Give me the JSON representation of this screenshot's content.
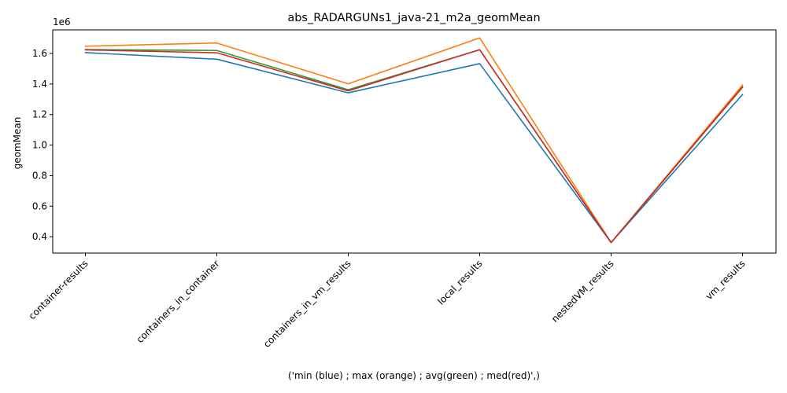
{
  "chart_data": {
    "type": "line",
    "title": "abs_RADARGUNs1_java-21_m2a_geomMean",
    "xlabel": "('min (blue) ; max (orange) ; avg(green) ; med(red)',)",
    "ylabel": "geomMean",
    "y_offset_label": "1e6",
    "categories": [
      "container-results",
      "containers_in_container",
      "containers_in_vm_results",
      "local_results",
      "nestedVM_results",
      "vm_results"
    ],
    "y_ticks": [
      0.4,
      0.6,
      0.8,
      1.0,
      1.2,
      1.4,
      1.6
    ],
    "y_tick_labels": [
      "0.4",
      "0.6",
      "0.8",
      "1.0",
      "1.2",
      "1.4",
      "1.6"
    ],
    "ylim": [
      0.293,
      1.754
    ],
    "y_scale": 1000000,
    "grid": false,
    "series": [
      {
        "color": "#1f77b4",
        "values": [
          1.605,
          1.562,
          1.342,
          1.533,
          0.362,
          1.331
        ]
      },
      {
        "color": "#ff7f0e",
        "values": [
          1.647,
          1.668,
          1.401,
          1.701,
          0.362,
          1.393
        ]
      },
      {
        "color": "#2ca02c",
        "values": [
          1.625,
          1.619,
          1.362,
          1.624,
          0.362,
          1.378
        ]
      },
      {
        "color": "#d62728",
        "values": [
          1.623,
          1.604,
          1.355,
          1.624,
          0.362,
          1.381
        ]
      }
    ]
  }
}
